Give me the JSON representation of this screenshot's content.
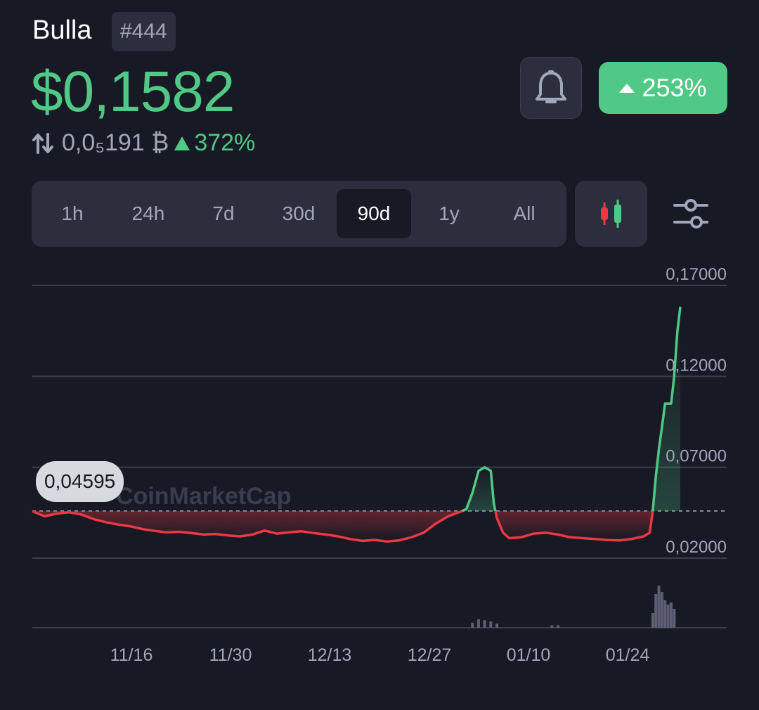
{
  "header": {
    "coin_name": "Bulla",
    "rank": "#444",
    "price": "$0,1582",
    "btc_price": "0,0₅191 ₿",
    "btc_change": "372%",
    "change_pct": "253%"
  },
  "icons": {
    "bell": "bell-icon",
    "swap": "swap-arrows-icon",
    "candle": "candlestick-icon",
    "filter": "sliders-icon"
  },
  "range_tabs": [
    "1h",
    "24h",
    "7d",
    "30d",
    "90d",
    "1y",
    "All"
  ],
  "active_range": "90d",
  "colors": {
    "up": "#4fc985",
    "down": "#ea3943",
    "bg": "#171924",
    "panel": "#2b2f3d",
    "muted": "#a1a7bb"
  },
  "chart_data": {
    "type": "line",
    "watermark": "CoinMarketCap",
    "current_label": "0,04595",
    "baseline": 0.04595,
    "x_ticks": [
      "11/16",
      "11/30",
      "12/13",
      "12/27",
      "01/10",
      "01/24"
    ],
    "y_ticks": [
      "0,17000",
      "0,12000",
      "0,07000",
      "0,02000"
    ],
    "y_tick_values": [
      0.17,
      0.12,
      0.07,
      0.02
    ],
    "ylim": [
      0.02,
      0.17
    ],
    "price_points": [
      [
        0,
        0.0459
      ],
      [
        2,
        0.043
      ],
      [
        4,
        0.0445
      ],
      [
        6,
        0.0452
      ],
      [
        8,
        0.044
      ],
      [
        10,
        0.0415
      ],
      [
        12,
        0.0398
      ],
      [
        14,
        0.0385
      ],
      [
        16,
        0.0375
      ],
      [
        18,
        0.036
      ],
      [
        20,
        0.035
      ],
      [
        22,
        0.0342
      ],
      [
        24,
        0.0345
      ],
      [
        26,
        0.0338
      ],
      [
        28,
        0.033
      ],
      [
        30,
        0.0333
      ],
      [
        32,
        0.0325
      ],
      [
        34,
        0.032
      ],
      [
        36,
        0.033
      ],
      [
        38,
        0.0352
      ],
      [
        40,
        0.0335
      ],
      [
        42,
        0.0342
      ],
      [
        44,
        0.0348
      ],
      [
        46,
        0.0338
      ],
      [
        48,
        0.033
      ],
      [
        50,
        0.032
      ],
      [
        52,
        0.0305
      ],
      [
        54,
        0.0295
      ],
      [
        56,
        0.03
      ],
      [
        58,
        0.0292
      ],
      [
        60,
        0.0298
      ],
      [
        62,
        0.0315
      ],
      [
        64,
        0.034
      ],
      [
        66,
        0.039
      ],
      [
        68,
        0.043
      ],
      [
        70,
        0.0455
      ],
      [
        71,
        0.047
      ],
      [
        72,
        0.056
      ],
      [
        73,
        0.068
      ],
      [
        74,
        0.07
      ],
      [
        75,
        0.068
      ],
      [
        75.5,
        0.05
      ],
      [
        76,
        0.042
      ],
      [
        77,
        0.034
      ],
      [
        78,
        0.031
      ],
      [
        80,
        0.0315
      ],
      [
        82,
        0.0335
      ],
      [
        84,
        0.034
      ],
      [
        86,
        0.033
      ],
      [
        88,
        0.0315
      ],
      [
        90,
        0.031
      ],
      [
        92,
        0.0305
      ],
      [
        94,
        0.03
      ],
      [
        96,
        0.0298
      ],
      [
        98,
        0.0305
      ],
      [
        100,
        0.032
      ],
      [
        101,
        0.034
      ],
      [
        101.5,
        0.046
      ],
      [
        102,
        0.065
      ],
      [
        102.5,
        0.08
      ],
      [
        103,
        0.092
      ],
      [
        103.5,
        0.105
      ],
      [
        104.5,
        0.105
      ],
      [
        105,
        0.12
      ],
      [
        105.5,
        0.144
      ],
      [
        106,
        0.1582
      ]
    ],
    "x_range": [
      0,
      112
    ],
    "volume_points": [
      [
        72,
        0.12
      ],
      [
        73,
        0.2
      ],
      [
        74,
        0.18
      ],
      [
        75,
        0.15
      ],
      [
        76,
        0.1
      ],
      [
        85,
        0.06
      ],
      [
        86,
        0.06
      ],
      [
        101.5,
        0.35
      ],
      [
        102,
        0.8
      ],
      [
        102.5,
        1.0
      ],
      [
        103,
        0.85
      ],
      [
        103.5,
        0.65
      ],
      [
        104,
        0.55
      ],
      [
        104.5,
        0.6
      ],
      [
        105,
        0.45
      ]
    ]
  }
}
